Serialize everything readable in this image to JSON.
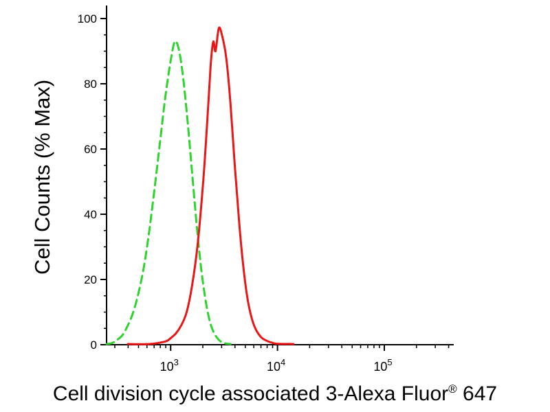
{
  "figure": {
    "background": "#ffffff"
  },
  "chart_data": {
    "type": "line",
    "chart_kind": "flow-cytometry-histogram",
    "title": "",
    "ylabel": "Cell Counts (% Max)",
    "xlabel": "Cell division cycle associated 3-Alexa Fluor® 647",
    "xlabel_caption": {
      "before": "Cell division cycle associated 3-Alexa Fluor",
      "registered": "®",
      "after": " 647"
    },
    "x_scale": "log10",
    "x_range_log10": [
      2.4,
      5.65
    ],
    "ylim": [
      0,
      100
    ],
    "y_ticks": [
      0,
      20,
      40,
      60,
      80,
      100
    ],
    "y_minor_tick_step": 5,
    "x_major_ticks": [
      {
        "log10": 3,
        "base": "10",
        "exponent": "3"
      },
      {
        "log10": 4,
        "base": "10",
        "exponent": "4"
      },
      {
        "log10": 5,
        "base": "10",
        "exponent": "5"
      }
    ],
    "axis_color": "#000000",
    "grid": false,
    "legend": false,
    "series": [
      {
        "name": "green-dashed",
        "color": "#2fd32f",
        "line_style": "dashed",
        "dash": [
          11,
          7
        ],
        "width": 3,
        "peak": {
          "log10_x": 3.04,
          "y_percent": 93
        },
        "points_log10x_percent": [
          [
            2.4,
            0
          ],
          [
            2.45,
            0.5
          ],
          [
            2.5,
            1.5
          ],
          [
            2.55,
            3
          ],
          [
            2.6,
            6
          ],
          [
            2.65,
            10
          ],
          [
            2.7,
            16
          ],
          [
            2.75,
            24
          ],
          [
            2.8,
            35
          ],
          [
            2.85,
            48
          ],
          [
            2.9,
            62
          ],
          [
            2.95,
            76
          ],
          [
            3.0,
            87
          ],
          [
            3.04,
            93
          ],
          [
            3.08,
            90
          ],
          [
            3.12,
            81
          ],
          [
            3.16,
            68
          ],
          [
            3.2,
            53
          ],
          [
            3.24,
            38
          ],
          [
            3.28,
            25
          ],
          [
            3.32,
            15
          ],
          [
            3.36,
            8
          ],
          [
            3.4,
            4
          ],
          [
            3.45,
            1.5
          ],
          [
            3.5,
            0.5
          ],
          [
            3.56,
            0
          ]
        ]
      },
      {
        "name": "red-solid",
        "color": "#e81616",
        "line_style": "solid",
        "dash": null,
        "width": 3,
        "peak": {
          "log10_x": 3.45,
          "y_percent": 97
        },
        "points_log10x_percent": [
          [
            2.6,
            0
          ],
          [
            2.8,
            0.2
          ],
          [
            2.95,
            1
          ],
          [
            3.0,
            2
          ],
          [
            3.05,
            3.5
          ],
          [
            3.1,
            6
          ],
          [
            3.15,
            10
          ],
          [
            3.2,
            18
          ],
          [
            3.25,
            30
          ],
          [
            3.3,
            48
          ],
          [
            3.33,
            62
          ],
          [
            3.36,
            78
          ],
          [
            3.38,
            88
          ],
          [
            3.4,
            93
          ],
          [
            3.42,
            90
          ],
          [
            3.45,
            97
          ],
          [
            3.48,
            95
          ],
          [
            3.52,
            88
          ],
          [
            3.56,
            74
          ],
          [
            3.6,
            55
          ],
          [
            3.64,
            38
          ],
          [
            3.68,
            24
          ],
          [
            3.72,
            14
          ],
          [
            3.76,
            8
          ],
          [
            3.8,
            4.5
          ],
          [
            3.85,
            2.2
          ],
          [
            3.9,
            1.2
          ],
          [
            3.95,
            0.6
          ],
          [
            4.0,
            0.3
          ],
          [
            4.15,
            0
          ]
        ]
      }
    ]
  }
}
